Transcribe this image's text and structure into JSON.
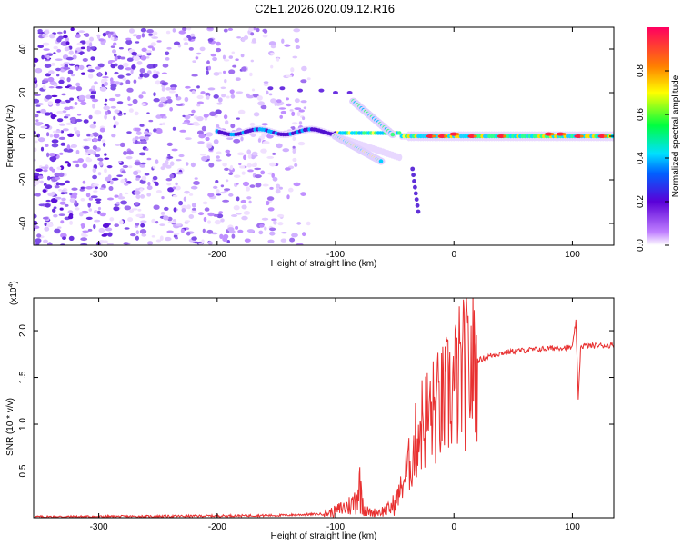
{
  "title": "C2E1.2026.020.09.12.R16",
  "colors": {
    "line": "#e83030",
    "axis": "#000000"
  },
  "chart_data": [
    {
      "type": "heatmap",
      "name": "spectrogram",
      "xlabel": "Height of straight line (km)",
      "ylabel": "Frequency (Hz)",
      "xlim": [
        -355,
        135
      ],
      "ylim": [
        -50,
        50
      ],
      "xticks": [
        -300,
        -200,
        -100,
        0,
        100
      ],
      "yticks": [
        -40,
        -20,
        0,
        20,
        40
      ],
      "xtick_labels": [
        "-300",
        "-200",
        "-100",
        "0",
        "100"
      ],
      "ytick_labels": [
        "-40",
        "-20",
        "0",
        "20",
        "40"
      ],
      "colorbar": {
        "label": "Normalized spectral amplitude",
        "range": [
          0,
          1
        ],
        "ticks": [
          0.0,
          0.2,
          0.4,
          0.6,
          0.8
        ],
        "tick_labels": [
          "0.0",
          "0.2",
          "0.4",
          "0.6",
          "0.8"
        ]
      },
      "features": [
        {
          "name": "noise-scatter",
          "x_range": [
            -355,
            -130
          ],
          "y_range": [
            -50,
            50
          ]
        },
        {
          "name": "main-echo",
          "x_range": [
            -200,
            135
          ],
          "center_hz": 0
        },
        {
          "name": "descending-branch",
          "from": [
            -100,
            0
          ],
          "to": [
            -60,
            -12
          ]
        },
        {
          "name": "ascending-branch",
          "from": [
            -85,
            16
          ],
          "to": [
            -50,
            0
          ]
        },
        {
          "name": "sparse-tail",
          "from": [
            -35,
            -15
          ],
          "to": [
            -30,
            -35
          ]
        }
      ]
    },
    {
      "type": "line",
      "name": "snr",
      "xlabel": "Height of straight line (km)",
      "ylabel": "SNR (10 * v/v)",
      "multiplier": "(x10",
      "multiplier_exp": "4",
      "xlim": [
        -355,
        135
      ],
      "ylim": [
        0,
        23500
      ],
      "xticks": [
        -300,
        -200,
        -100,
        0,
        100
      ],
      "yticks": [
        5000,
        10000,
        15000,
        20000
      ],
      "xtick_labels": [
        "-300",
        "-200",
        "-100",
        "0",
        "100"
      ],
      "ytick_labels": [
        "0.5",
        "1.0",
        "1.5",
        "2.0"
      ],
      "series": [
        {
          "name": "SNR",
          "x": [
            -355,
            -300,
            -250,
            -200,
            -150,
            -110,
            -100,
            -95,
            -90,
            -85,
            -80,
            -75,
            -70,
            -65,
            -60,
            -55,
            -50,
            -45,
            -40,
            -35,
            -30,
            -25,
            -20,
            -15,
            -10,
            -5,
            0,
            5,
            10,
            15,
            20,
            30,
            40,
            50,
            60,
            70,
            80,
            90,
            100,
            103,
            105,
            107,
            110,
            120,
            135
          ],
          "y": [
            100,
            120,
            150,
            200,
            250,
            400,
            700,
            1000,
            1200,
            1500,
            3500,
            800,
            500,
            600,
            700,
            900,
            1500,
            3000,
            5000,
            6500,
            9500,
            10500,
            11000,
            11500,
            12000,
            13000,
            14000,
            15000,
            15500,
            16000,
            16800,
            17300,
            17600,
            17800,
            17900,
            18000,
            18100,
            18200,
            18200,
            21000,
            12500,
            18300,
            18400,
            18400,
            18450
          ]
        }
      ]
    }
  ]
}
